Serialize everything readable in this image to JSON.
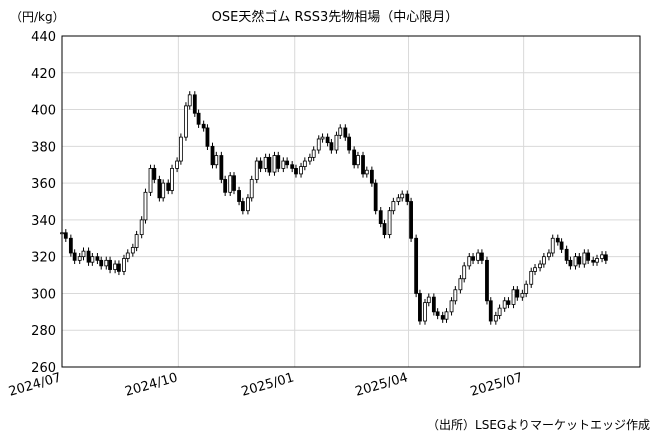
{
  "chart_data": {
    "type": "candlestick",
    "title": "OSE天然ゴム RSS3先物相場（中心限月）",
    "unit": "（円/kg）",
    "source": "（出所）LSEGよりマーケットエッジ作成",
    "ylim": [
      260,
      440
    ],
    "yticks": [
      "260",
      "280",
      "300",
      "320",
      "340",
      "360",
      "380",
      "400",
      "420",
      "440"
    ],
    "xlim": [
      "2024-07-01",
      "2025-10-01"
    ],
    "xticks": [
      {
        "date": "2024-07-01",
        "label": "2024/07"
      },
      {
        "date": "2024-10-01",
        "label": "2024/10"
      },
      {
        "date": "2025-01-01",
        "label": "2025/01"
      },
      {
        "date": "2025-04-01",
        "label": "2025/04"
      },
      {
        "date": "2025-07-01",
        "label": "2025/07"
      }
    ],
    "grid": true,
    "series": [
      {
        "points": [
          [
            "2024-07-01",
            333
          ],
          [
            "2024-07-04",
            330
          ],
          [
            "2024-07-08",
            322
          ],
          [
            "2024-07-11",
            318
          ],
          [
            "2024-07-15",
            320
          ],
          [
            "2024-07-18",
            323
          ],
          [
            "2024-07-22",
            317
          ],
          [
            "2024-07-25",
            320
          ],
          [
            "2024-07-29",
            318
          ],
          [
            "2024-08-01",
            315
          ],
          [
            "2024-08-05",
            318
          ],
          [
            "2024-08-08",
            313
          ],
          [
            "2024-08-12",
            316
          ],
          [
            "2024-08-15",
            312
          ],
          [
            "2024-08-19",
            319
          ],
          [
            "2024-08-22",
            322
          ],
          [
            "2024-08-26",
            325
          ],
          [
            "2024-08-29",
            332
          ],
          [
            "2024-09-02",
            340
          ],
          [
            "2024-09-05",
            355
          ],
          [
            "2024-09-09",
            368
          ],
          [
            "2024-09-12",
            362
          ],
          [
            "2024-09-16",
            352
          ],
          [
            "2024-09-19",
            360
          ],
          [
            "2024-09-23",
            356
          ],
          [
            "2024-09-26",
            368
          ],
          [
            "2024-09-30",
            372
          ],
          [
            "2024-10-03",
            385
          ],
          [
            "2024-10-07",
            402
          ],
          [
            "2024-10-10",
            408
          ],
          [
            "2024-10-14",
            398
          ],
          [
            "2024-10-17",
            392
          ],
          [
            "2024-10-21",
            390
          ],
          [
            "2024-10-24",
            380
          ],
          [
            "2024-10-28",
            370
          ],
          [
            "2024-10-31",
            375
          ],
          [
            "2024-11-04",
            362
          ],
          [
            "2024-11-07",
            355
          ],
          [
            "2024-11-11",
            364
          ],
          [
            "2024-11-14",
            356
          ],
          [
            "2024-11-18",
            350
          ],
          [
            "2024-11-21",
            345
          ],
          [
            "2024-11-25",
            352
          ],
          [
            "2024-11-28",
            362
          ],
          [
            "2024-12-02",
            372
          ],
          [
            "2024-12-05",
            368
          ],
          [
            "2024-12-09",
            374
          ],
          [
            "2024-12-12",
            366
          ],
          [
            "2024-12-16",
            375
          ],
          [
            "2024-12-19",
            368
          ],
          [
            "2024-12-23",
            372
          ],
          [
            "2024-12-26",
            370
          ],
          [
            "2024-12-30",
            368
          ],
          [
            "2025-01-02",
            365
          ],
          [
            "2025-01-06",
            369
          ],
          [
            "2025-01-09",
            372
          ],
          [
            "2025-01-13",
            374
          ],
          [
            "2025-01-16",
            378
          ],
          [
            "2025-01-20",
            384
          ],
          [
            "2025-01-23",
            385
          ],
          [
            "2025-01-27",
            382
          ],
          [
            "2025-01-30",
            378
          ],
          [
            "2025-02-03",
            386
          ],
          [
            "2025-02-06",
            390
          ],
          [
            "2025-02-10",
            385
          ],
          [
            "2025-02-13",
            378
          ],
          [
            "2025-02-17",
            370
          ],
          [
            "2025-02-20",
            375
          ],
          [
            "2025-02-24",
            365
          ],
          [
            "2025-02-27",
            367
          ],
          [
            "2025-03-03",
            360
          ],
          [
            "2025-03-06",
            345
          ],
          [
            "2025-03-10",
            338
          ],
          [
            "2025-03-13",
            332
          ],
          [
            "2025-03-17",
            345
          ],
          [
            "2025-03-20",
            350
          ],
          [
            "2025-03-24",
            352
          ],
          [
            "2025-03-27",
            354
          ],
          [
            "2025-03-31",
            350
          ],
          [
            "2025-04-03",
            330
          ],
          [
            "2025-04-07",
            300
          ],
          [
            "2025-04-10",
            285
          ],
          [
            "2025-04-14",
            295
          ],
          [
            "2025-04-17",
            298
          ],
          [
            "2025-04-21",
            290
          ],
          [
            "2025-04-24",
            288
          ],
          [
            "2025-04-28",
            286
          ],
          [
            "2025-05-01",
            290
          ],
          [
            "2025-05-05",
            296
          ],
          [
            "2025-05-08",
            302
          ],
          [
            "2025-05-12",
            308
          ],
          [
            "2025-05-15",
            315
          ],
          [
            "2025-05-19",
            320
          ],
          [
            "2025-05-22",
            318
          ],
          [
            "2025-05-26",
            322
          ],
          [
            "2025-05-29",
            318
          ],
          [
            "2025-06-02",
            296
          ],
          [
            "2025-06-05",
            285
          ],
          [
            "2025-06-09",
            288
          ],
          [
            "2025-06-12",
            292
          ],
          [
            "2025-06-16",
            296
          ],
          [
            "2025-06-19",
            294
          ],
          [
            "2025-06-23",
            302
          ],
          [
            "2025-06-26",
            298
          ],
          [
            "2025-06-30",
            300
          ],
          [
            "2025-07-03",
            305
          ],
          [
            "2025-07-07",
            312
          ],
          [
            "2025-07-10",
            314
          ],
          [
            "2025-07-14",
            316
          ],
          [
            "2025-07-17",
            320
          ],
          [
            "2025-07-21",
            322
          ],
          [
            "2025-07-24",
            330
          ],
          [
            "2025-07-28",
            328
          ],
          [
            "2025-07-31",
            324
          ],
          [
            "2025-08-04",
            318
          ],
          [
            "2025-08-07",
            315
          ],
          [
            "2025-08-11",
            320
          ],
          [
            "2025-08-14",
            316
          ],
          [
            "2025-08-18",
            322
          ],
          [
            "2025-08-21",
            318
          ],
          [
            "2025-08-25",
            317
          ],
          [
            "2025-08-28",
            319
          ],
          [
            "2025-09-01",
            321
          ],
          [
            "2025-09-04",
            318
          ]
        ]
      }
    ],
    "colors": {
      "candle": "#000000",
      "grid": "#d9d9d9",
      "axis": "#000000"
    }
  }
}
